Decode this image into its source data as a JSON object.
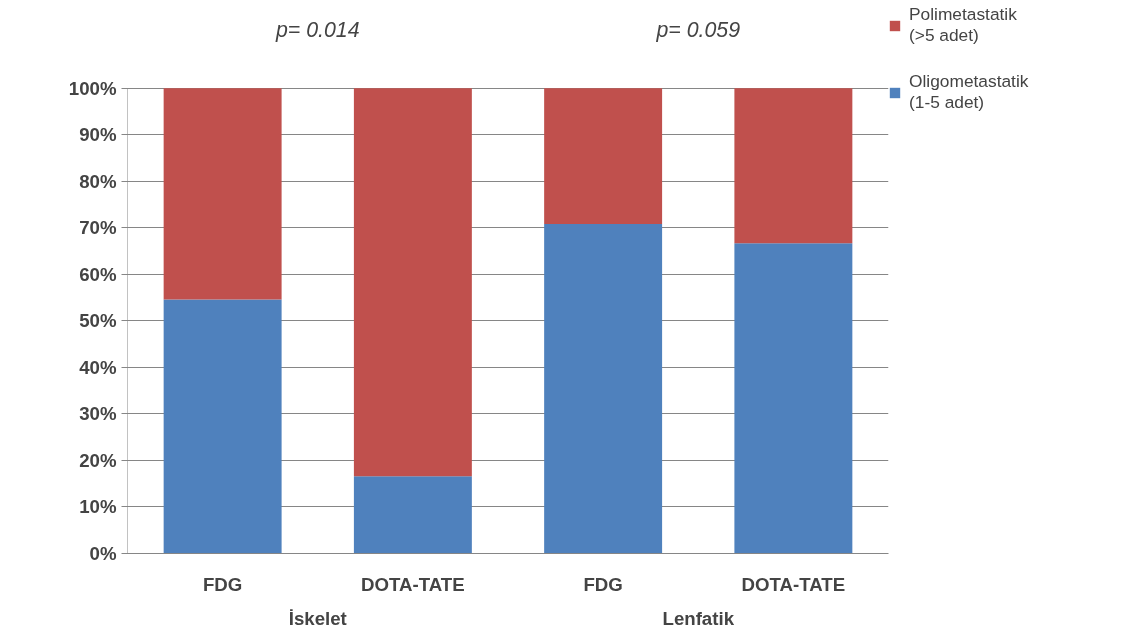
{
  "chart_data": {
    "type": "bar",
    "stacked": true,
    "categories": [
      "FDG",
      "DOTA-TATE",
      "FDG",
      "DOTA-TATE"
    ],
    "series": [
      {
        "name": "Oligometastatik\n(1-5 adet)",
        "color": "#4f81bd",
        "values": [
          54.6,
          16.6,
          70.8,
          66.7
        ]
      },
      {
        "name": "Polimetastatik\n(>5 adet)",
        "color": "#c0504d",
        "values": [
          45.4,
          83.4,
          29.2,
          33.3
        ]
      }
    ],
    "ylim": [
      0,
      100
    ],
    "yticks": [
      {
        "value": 0,
        "label": "0%"
      },
      {
        "value": 10,
        "label": "10%"
      },
      {
        "value": 20,
        "label": "20%"
      },
      {
        "value": 30,
        "label": "30%"
      },
      {
        "value": 40,
        "label": "40%"
      },
      {
        "value": 50,
        "label": "50%"
      },
      {
        "value": 60,
        "label": "60%"
      },
      {
        "value": 70,
        "label": "70%"
      },
      {
        "value": 80,
        "label": "80%"
      },
      {
        "value": 90,
        "label": "90%"
      },
      {
        "value": 100,
        "label": "100%"
      }
    ],
    "grid": "y",
    "legend": "right",
    "annotations": [
      "p= 0.014",
      "p= 0.059",
      "İskelet",
      "Lenfatik"
    ]
  }
}
